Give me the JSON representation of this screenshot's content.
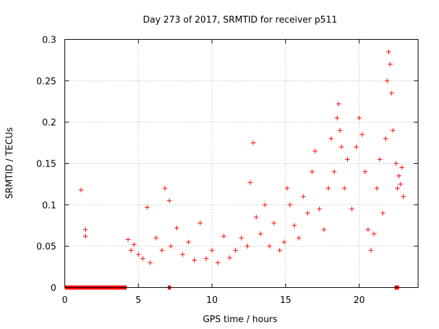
{
  "chart_data": {
    "type": "scatter",
    "title": "Day 273 of 2017, SRMTID for receiver p511",
    "xlabel": "GPS time / hours",
    "ylabel": "SRMTID / TECUs",
    "xlim": [
      0,
      24
    ],
    "ylim": [
      0,
      0.3
    ],
    "x_ticks": [
      0,
      5,
      10,
      15,
      20
    ],
    "x_tick_labels": [
      "0",
      "5",
      "10",
      "15",
      "20"
    ],
    "y_ticks": [
      0,
      0.05,
      0.1,
      0.15,
      0.2,
      0.25,
      0.3
    ],
    "y_tick_labels": [
      "0",
      "0.05",
      "0.1",
      "0.15",
      "0.2",
      "0.25",
      "0.3"
    ],
    "grid": true,
    "marker": "+",
    "color": "#ff0000",
    "series": [
      {
        "name": "SRMTID",
        "points": [
          [
            1.1,
            0.118
          ],
          [
            1.4,
            0.07
          ],
          [
            1.4,
            0.062
          ],
          [
            4.3,
            0.058
          ],
          [
            4.5,
            0.045
          ],
          [
            4.7,
            0.052
          ],
          [
            5.0,
            0.04
          ],
          [
            5.3,
            0.035
          ],
          [
            5.6,
            0.097
          ],
          [
            5.8,
            0.03
          ],
          [
            6.2,
            0.06
          ],
          [
            6.6,
            0.045
          ],
          [
            6.8,
            0.12
          ],
          [
            7.1,
            0.105
          ],
          [
            7.2,
            0.05
          ],
          [
            7.6,
            0.072
          ],
          [
            8.0,
            0.04
          ],
          [
            8.4,
            0.055
          ],
          [
            8.8,
            0.033
          ],
          [
            9.2,
            0.078
          ],
          [
            9.6,
            0.035
          ],
          [
            10.0,
            0.045
          ],
          [
            10.4,
            0.03
          ],
          [
            10.8,
            0.062
          ],
          [
            11.2,
            0.036
          ],
          [
            11.6,
            0.045
          ],
          [
            12.0,
            0.06
          ],
          [
            12.4,
            0.05
          ],
          [
            12.6,
            0.127
          ],
          [
            12.8,
            0.175
          ],
          [
            13.0,
            0.085
          ],
          [
            13.3,
            0.065
          ],
          [
            13.6,
            0.1
          ],
          [
            13.9,
            0.05
          ],
          [
            14.2,
            0.078
          ],
          [
            14.6,
            0.045
          ],
          [
            14.9,
            0.055
          ],
          [
            15.1,
            0.12
          ],
          [
            15.3,
            0.1
          ],
          [
            15.6,
            0.075
          ],
          [
            15.9,
            0.06
          ],
          [
            16.2,
            0.11
          ],
          [
            16.5,
            0.09
          ],
          [
            16.8,
            0.14
          ],
          [
            17.0,
            0.165
          ],
          [
            17.3,
            0.095
          ],
          [
            17.6,
            0.07
          ],
          [
            17.9,
            0.12
          ],
          [
            18.1,
            0.18
          ],
          [
            18.3,
            0.14
          ],
          [
            18.5,
            0.205
          ],
          [
            18.6,
            0.222
          ],
          [
            18.7,
            0.19
          ],
          [
            18.8,
            0.17
          ],
          [
            19.0,
            0.12
          ],
          [
            19.2,
            0.155
          ],
          [
            19.5,
            0.095
          ],
          [
            19.8,
            0.17
          ],
          [
            20.0,
            0.205
          ],
          [
            20.2,
            0.185
          ],
          [
            20.4,
            0.14
          ],
          [
            20.6,
            0.07
          ],
          [
            20.8,
            0.045
          ],
          [
            21.0,
            0.065
          ],
          [
            21.2,
            0.12
          ],
          [
            21.4,
            0.155
          ],
          [
            21.6,
            0.09
          ],
          [
            21.8,
            0.18
          ],
          [
            21.9,
            0.25
          ],
          [
            22.0,
            0.285
          ],
          [
            22.1,
            0.27
          ],
          [
            22.2,
            0.235
          ],
          [
            22.3,
            0.19
          ],
          [
            22.5,
            0.15
          ],
          [
            22.6,
            0.12
          ],
          [
            22.7,
            0.135
          ],
          [
            22.8,
            0.125
          ],
          [
            22.9,
            0.145
          ],
          [
            23.0,
            0.11
          ]
        ]
      }
    ],
    "zero_level_segments": [
      [
        0.0,
        4.2
      ],
      [
        7.0,
        7.2
      ],
      [
        22.4,
        22.7
      ]
    ]
  }
}
